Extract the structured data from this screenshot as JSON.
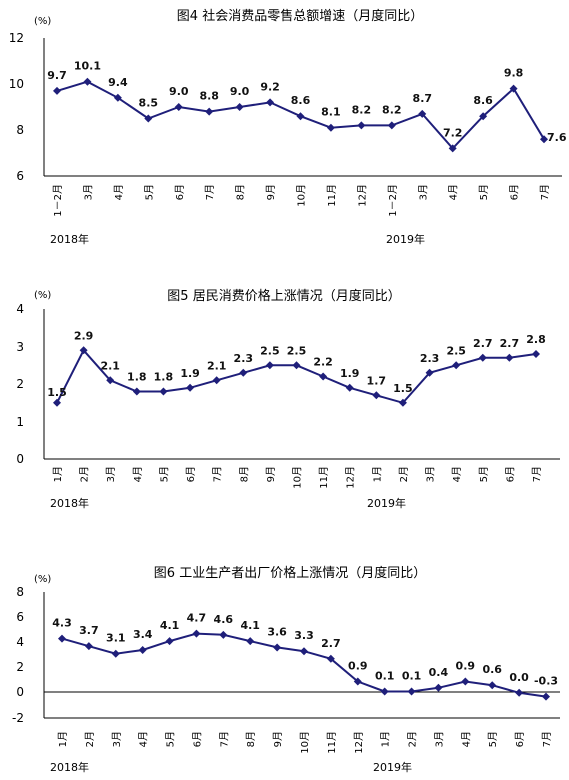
{
  "style": {
    "line_color": "#1f1f7a",
    "marker_color": "#1f1f7a"
  },
  "chart_data": [
    {
      "type": "line",
      "title": "图4   社会消费品零售总额增速（月度同比）",
      "unit": "(%)",
      "ylim": [
        6,
        12
      ],
      "yticks": [
        "6",
        "8",
        "10",
        "12"
      ],
      "grid": false,
      "categories": [
        "1－2月",
        "3月",
        "4月",
        "5月",
        "6月",
        "7月",
        "8月",
        "9月",
        "10月",
        "11月",
        "12月",
        "1－2月",
        "3月",
        "4月",
        "5月",
        "6月",
        "7月"
      ],
      "values": [
        9.7,
        10.1,
        9.4,
        8.5,
        9.0,
        8.8,
        9.0,
        9.2,
        8.6,
        8.1,
        8.2,
        8.2,
        8.7,
        7.2,
        8.6,
        9.8,
        7.6
      ],
      "labels": [
        "9.7",
        "10.1",
        "9.4",
        "8.5",
        "9.0",
        "8.8",
        "9.0",
        "9.2",
        "8.6",
        "8.1",
        "8.2",
        "8.2",
        "8.7",
        "7.2",
        "8.6",
        "9.8",
        "7.6"
      ],
      "years": [
        "2018年",
        "2019年"
      ]
    },
    {
      "type": "line",
      "title": "图5   居民消费价格上涨情况（月度同比）",
      "unit": "(%)",
      "ylim": [
        0,
        4
      ],
      "yticks": [
        "0",
        "1",
        "2",
        "3",
        "4"
      ],
      "grid": false,
      "categories": [
        "1月",
        "2月",
        "3月",
        "4月",
        "5月",
        "6月",
        "7月",
        "8月",
        "9月",
        "10月",
        "11月",
        "12月",
        "1月",
        "2月",
        "3月",
        "4月",
        "5月",
        "6月",
        "7月"
      ],
      "values": [
        1.5,
        2.9,
        2.1,
        1.8,
        1.8,
        1.9,
        2.1,
        2.3,
        2.5,
        2.5,
        2.2,
        1.9,
        1.7,
        1.5,
        2.3,
        2.5,
        2.7,
        2.7,
        2.8
      ],
      "labels": [
        "1.5",
        "2.9",
        "2.1",
        "1.8",
        "1.8",
        "1.9",
        "2.1",
        "2.3",
        "2.5",
        "2.5",
        "2.2",
        "1.9",
        "1.7",
        "1.5",
        "2.3",
        "2.5",
        "2.7",
        "2.7",
        "2.8"
      ],
      "years": [
        "2018年",
        "2019年"
      ]
    },
    {
      "type": "line",
      "title": "图6   工业生产者出厂价格上涨情况（月度同比）",
      "unit": "(%)",
      "ylim": [
        -2,
        8
      ],
      "yticks": [
        "-2",
        "0",
        "2",
        "4",
        "6",
        "8"
      ],
      "grid": false,
      "categories": [
        "1月",
        "2月",
        "3月",
        "4月",
        "5月",
        "6月",
        "7月",
        "8月",
        "9月",
        "10月",
        "11月",
        "12月",
        "1月",
        "2月",
        "3月",
        "4月",
        "5月",
        "6月",
        "7月"
      ],
      "values": [
        4.3,
        3.7,
        3.1,
        3.4,
        4.1,
        4.7,
        4.6,
        4.1,
        3.6,
        3.3,
        2.7,
        0.9,
        0.1,
        0.1,
        0.4,
        0.9,
        0.6,
        0.0,
        -0.3
      ],
      "labels": [
        "4.3",
        "3.7",
        "3.1",
        "3.4",
        "4.1",
        "4.7",
        "4.6",
        "4.1",
        "3.6",
        "3.3",
        "2.7",
        "0.9",
        "0.1",
        "0.1",
        "0.4",
        "0.9",
        "0.6",
        "0.0",
        "-0.3"
      ],
      "years": [
        "2018年",
        "2019年"
      ]
    }
  ]
}
